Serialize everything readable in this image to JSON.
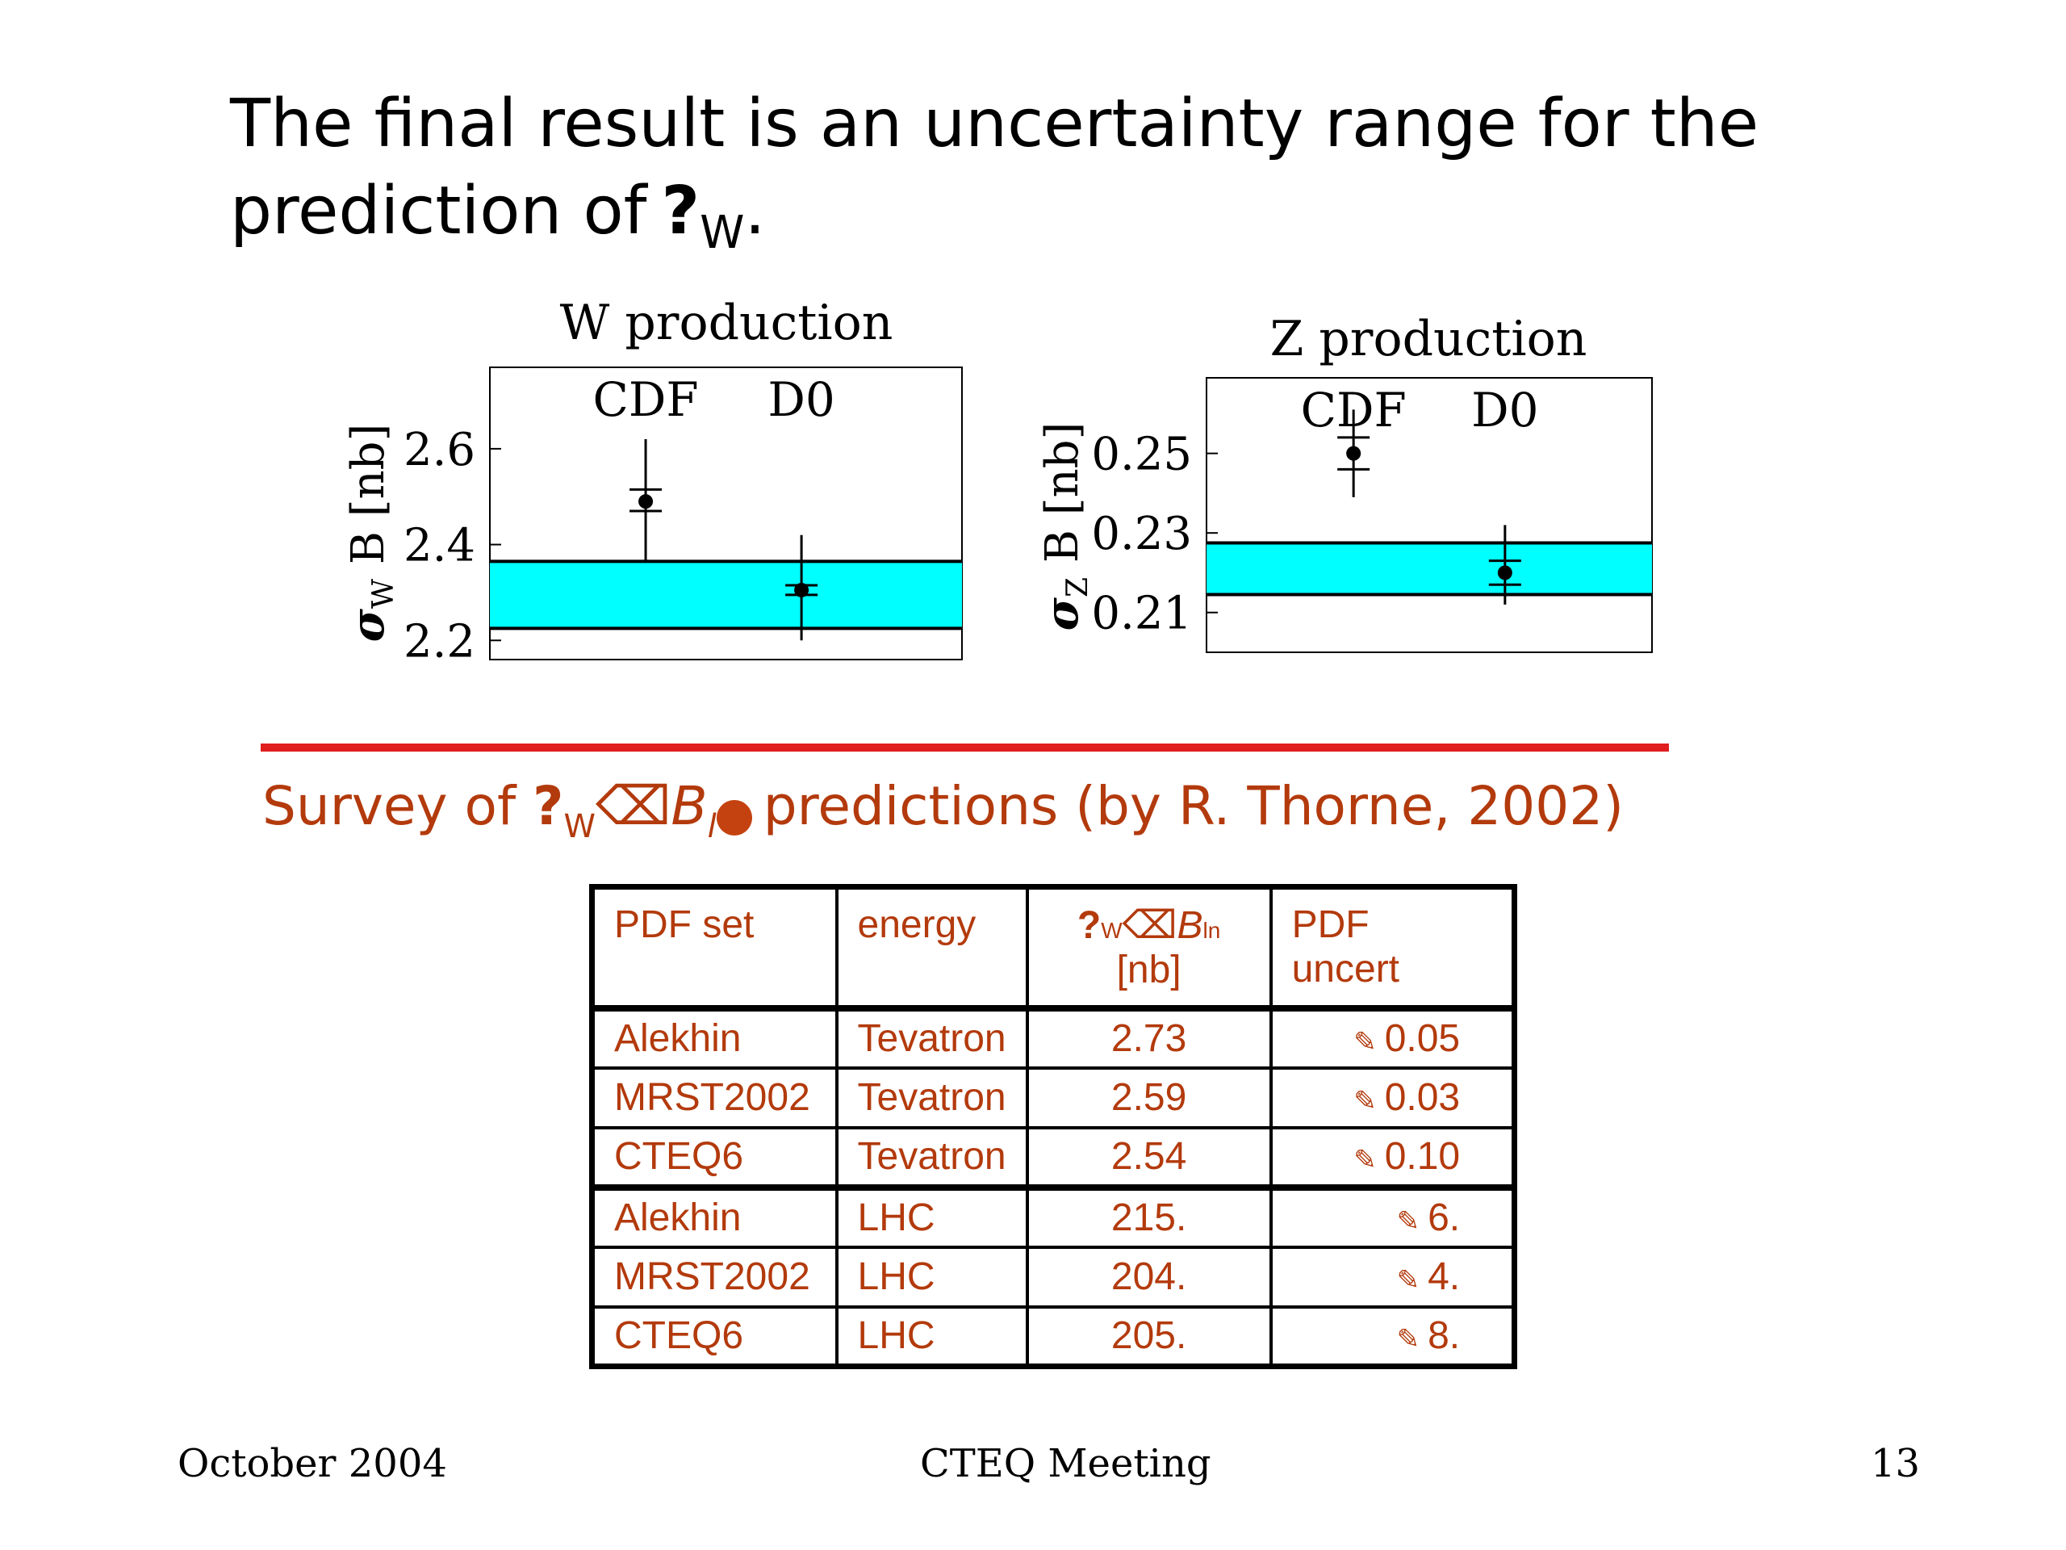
{
  "title": {
    "line1": "The final result is an uncertainty range for the",
    "line2_text": "prediction of",
    "line2_symbol": "?",
    "line2_sub": "W",
    "line2_end": "."
  },
  "chart_data": [
    {
      "type": "scatter",
      "title": "W production",
      "ylabel": "σ_W B [nb]",
      "yticks": [
        "2.2",
        "2.4",
        "2.6"
      ],
      "ylim": [
        2.16,
        2.77
      ],
      "band": [
        2.225,
        2.365
      ],
      "band_color": "#00ffff",
      "grid": false,
      "legend": "none",
      "points": [
        {
          "label": "CDF",
          "y": 2.49,
          "err_inner": [
            2.47,
            2.515
          ],
          "err_outer": [
            2.365,
            2.62
          ]
        },
        {
          "label": "D0",
          "y": 2.305,
          "err_inner": [
            2.295,
            2.315
          ],
          "err_outer": [
            2.2,
            2.42
          ]
        }
      ]
    },
    {
      "type": "scatter",
      "title": "Z production",
      "ylabel": "σ_Z B [nb]",
      "yticks": [
        "0.21",
        "0.23",
        "0.25"
      ],
      "ylim": [
        0.2,
        0.269
      ],
      "band": [
        0.2145,
        0.2275
      ],
      "band_color": "#00ffff",
      "grid": false,
      "legend": "none",
      "points": [
        {
          "label": "CDF",
          "y": 0.25,
          "err_inner": [
            0.246,
            0.254
          ],
          "err_outer": [
            0.239,
            0.261
          ]
        },
        {
          "label": "D0",
          "y": 0.22,
          "err_inner": [
            0.217,
            0.223
          ],
          "err_outer": [
            0.212,
            0.232
          ]
        }
      ]
    }
  ],
  "survey": {
    "prefix": "Survey of",
    "symbol": "?",
    "sub": "W",
    "glyph": "⌫",
    "b": "B",
    "bsub": "l",
    "suffix": "predictions (by R. Thorne, 2002)"
  },
  "table": {
    "headers": {
      "pdf_set": "PDF set",
      "energy": "energy",
      "sym": "?",
      "sym_sub": "W",
      "glyph": "⌫",
      "b": "B",
      "b_sub": "ln",
      "unit": "[nb]",
      "uncert": "PDF uncert"
    },
    "pm_symbol": "✎",
    "rows": [
      {
        "pdf": "Alekhin",
        "energy": "Tevatron",
        "value": "2.73",
        "uncert": "0.05"
      },
      {
        "pdf": "MRST2002",
        "energy": "Tevatron",
        "value": "2.59",
        "uncert": "0.03"
      },
      {
        "pdf": "CTEQ6",
        "energy": "Tevatron",
        "value": "2.54",
        "uncert": "0.10"
      },
      {
        "pdf": "Alekhin",
        "energy": "LHC",
        "value": "215.",
        "uncert": "6."
      },
      {
        "pdf": "MRST2002",
        "energy": "LHC",
        "value": "204.",
        "uncert": "4."
      },
      {
        "pdf": "CTEQ6",
        "energy": "LHC",
        "value": "205.",
        "uncert": "8."
      }
    ]
  },
  "footer": {
    "left": "October 2004",
    "center": "CTEQ Meeting",
    "right": "13"
  }
}
